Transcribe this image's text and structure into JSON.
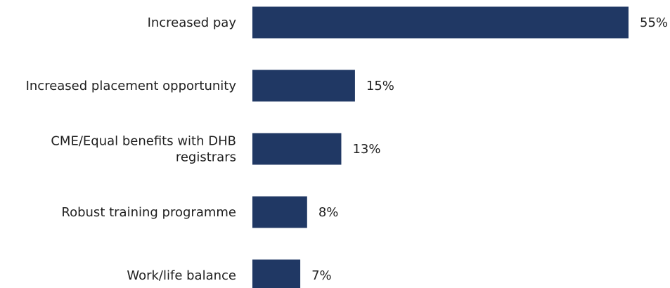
{
  "chart_data": {
    "type": "bar",
    "orientation": "horizontal",
    "categories": [
      [
        "Increased pay"
      ],
      [
        "Increased placement opportunity"
      ],
      [
        "CME/Equal benefits with DHB",
        "registrars"
      ],
      [
        "Robust training programme"
      ],
      [
        "Work/life balance"
      ]
    ],
    "values": [
      55,
      15,
      13,
      8,
      7
    ],
    "value_labels": [
      "55%",
      "15%",
      "13%",
      "8%",
      "7%"
    ],
    "unit": "%",
    "title": "",
    "xlabel": "",
    "ylabel": "",
    "xlim": [
      0,
      55
    ],
    "grid": false,
    "legend": "none",
    "bar_color": "#203864"
  }
}
